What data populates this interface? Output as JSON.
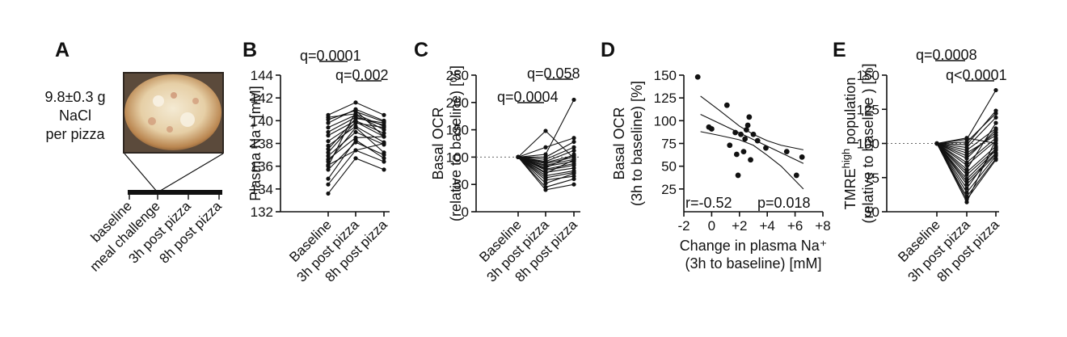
{
  "panel_labels": {
    "A": "A",
    "B": "B",
    "C": "C",
    "D": "D",
    "E": "E"
  },
  "panel_A": {
    "salt_text": [
      "9.8±0.3 g",
      "NaCl",
      "per pizza"
    ],
    "timeline": [
      "baseline",
      "meal challenge",
      "3h post pizza",
      "8h post pizza"
    ],
    "image": "pizza-photo"
  },
  "chart_data": [
    {
      "panel": "B",
      "type": "line",
      "ylabel": "Plasma Na⁺ [mM]",
      "categories": [
        "Baseline",
        "3h post pizza",
        "8h post pizza"
      ],
      "ylim": [
        132,
        144
      ],
      "yticks": [
        132,
        134,
        136,
        138,
        140,
        142,
        144
      ],
      "annotations": [
        {
          "pair": [
            0,
            1
          ],
          "text": "q=0.0001"
        },
        {
          "pair": [
            1,
            2
          ],
          "text": "q=0.002"
        }
      ],
      "series": [
        [
          140.5,
          141.6,
          140.5
        ],
        [
          140.3,
          140.6,
          139.5
        ],
        [
          140.1,
          140.9,
          138.6
        ],
        [
          139.8,
          141.0,
          140.0
        ],
        [
          139.4,
          140.5,
          139.2
        ],
        [
          139.0,
          140.3,
          139.6
        ],
        [
          138.7,
          140.0,
          138.9
        ],
        [
          138.2,
          139.8,
          139.4
        ],
        [
          137.8,
          139.5,
          138.1
        ],
        [
          137.5,
          140.2,
          139.8
        ],
        [
          137.2,
          139.9,
          138.6
        ],
        [
          136.9,
          139.0,
          137.9
        ],
        [
          136.6,
          138.5,
          138.6
        ],
        [
          136.4,
          139.4,
          137.2
        ],
        [
          136.1,
          137.4,
          136.4
        ],
        [
          136.0,
          140.8,
          139.9
        ],
        [
          135.7,
          138.1,
          137.0
        ],
        [
          134.9,
          138.3,
          136.7
        ],
        [
          134.4,
          137.4,
          138.0
        ],
        [
          133.6,
          136.7,
          135.7
        ]
      ]
    },
    {
      "panel": "C",
      "type": "line",
      "ylabel": [
        "Basal OCR",
        "(relative to baseline) [%]"
      ],
      "categories": [
        "Baseline",
        "3h post pizza",
        "8h post pizza"
      ],
      "ylim": [
        0,
        250
      ],
      "yticks": [
        0,
        50,
        100,
        150,
        200,
        250
      ],
      "reference_line": 100,
      "annotations": [
        {
          "pair": [
            0,
            1
          ],
          "text": "q=0.0004"
        },
        {
          "pair": [
            1,
            2
          ],
          "text": "q=0.058"
        }
      ],
      "series": [
        [
          100,
          148,
          98
        ],
        [
          100,
          118,
          135
        ],
        [
          100,
          105,
          205
        ],
        [
          100,
          100,
          128
        ],
        [
          100,
          96,
          118
        ],
        [
          100,
          92,
          112
        ],
        [
          100,
          90,
          103
        ],
        [
          100,
          88,
          100
        ],
        [
          100,
          85,
          96
        ],
        [
          100,
          83,
          92
        ],
        [
          100,
          80,
          105
        ],
        [
          100,
          78,
          88
        ],
        [
          100,
          76,
          85
        ],
        [
          100,
          72,
          80
        ],
        [
          100,
          70,
          95
        ],
        [
          100,
          66,
          75
        ],
        [
          100,
          62,
          72
        ],
        [
          100,
          58,
          65
        ],
        [
          100,
          52,
          70
        ],
        [
          100,
          45,
          60
        ],
        [
          100,
          40,
          50
        ]
      ]
    },
    {
      "panel": "D",
      "type": "scatter",
      "xlabel": [
        "Change in plasma Na⁺",
        "(3h to baseline) [mM]"
      ],
      "ylabel": [
        "Basal OCR",
        "(3h to baseline) [%]"
      ],
      "xlim": [
        -2,
        8
      ],
      "ylim": [
        0,
        150
      ],
      "xticks": [
        -2,
        0,
        2,
        4,
        6,
        8
      ],
      "xtick_labels": [
        "-2",
        "0",
        "+2",
        "+4",
        "+6",
        "+8"
      ],
      "yticks": [
        25,
        50,
        75,
        100,
        125,
        150
      ],
      "fit": {
        "x": [
          -0.8,
          6.6
        ],
        "y": [
          107,
          53
        ]
      },
      "ci_upper": {
        "x": [
          -0.8,
          0.5,
          2.0,
          3.0,
          4.0,
          5.0,
          6.6
        ],
        "y": [
          127,
          112,
          94,
          85,
          78,
          73,
          68
        ]
      },
      "ci_lower": {
        "x": [
          -0.8,
          0.5,
          2.0,
          3.0,
          4.0,
          5.0,
          6.6
        ],
        "y": [
          88,
          84,
          79,
          73,
          62,
          50,
          25
        ]
      },
      "points": {
        "x": [
          -1.0,
          -0.2,
          0.0,
          1.1,
          1.3,
          1.7,
          1.8,
          1.9,
          2.1,
          2.3,
          2.4,
          2.5,
          2.6,
          2.7,
          2.8,
          3.0,
          3.3,
          3.9,
          5.4,
          6.1,
          6.5
        ],
        "y": [
          148,
          93,
          91,
          117,
          73,
          87,
          63,
          40,
          85,
          66,
          80,
          90,
          95,
          104,
          57,
          85,
          78,
          70,
          66,
          40,
          60
        ]
      },
      "stats": {
        "r": "r=-0.52",
        "p": "p=0.018"
      }
    },
    {
      "panel": "E",
      "type": "line",
      "ylabel": [
        "TMRE^high population",
        "(relative to baseline ) [%]"
      ],
      "categories": [
        "Baseline",
        "3h post pizza",
        "8h post pizza"
      ],
      "ylim": [
        50,
        150
      ],
      "yticks": [
        50,
        75,
        100,
        125,
        150
      ],
      "reference_line": 100,
      "annotations": [
        {
          "pair": [
            0,
            1
          ],
          "text": "q=0.0008"
        },
        {
          "pair": [
            1,
            2
          ],
          "text": "q<0.0001"
        }
      ],
      "series": [
        [
          100,
          104,
          100
        ],
        [
          100,
          103,
          139
        ],
        [
          100,
          101,
          122
        ],
        [
          100,
          99,
          124
        ],
        [
          100,
          97,
          119
        ],
        [
          100,
          95,
          111
        ],
        [
          100,
          93,
          106
        ],
        [
          100,
          91,
          108
        ],
        [
          100,
          89,
          110
        ],
        [
          100,
          86,
          104
        ],
        [
          100,
          84,
          102
        ],
        [
          100,
          81,
          115
        ],
        [
          100,
          79,
          98
        ],
        [
          100,
          77,
          96
        ],
        [
          100,
          74,
          95
        ],
        [
          100,
          72,
          93
        ],
        [
          100,
          70,
          92
        ],
        [
          100,
          67,
          97
        ],
        [
          100,
          64,
          91
        ],
        [
          100,
          61,
          89
        ],
        [
          100,
          59,
          88
        ],
        [
          100,
          57,
          103
        ]
      ]
    }
  ]
}
